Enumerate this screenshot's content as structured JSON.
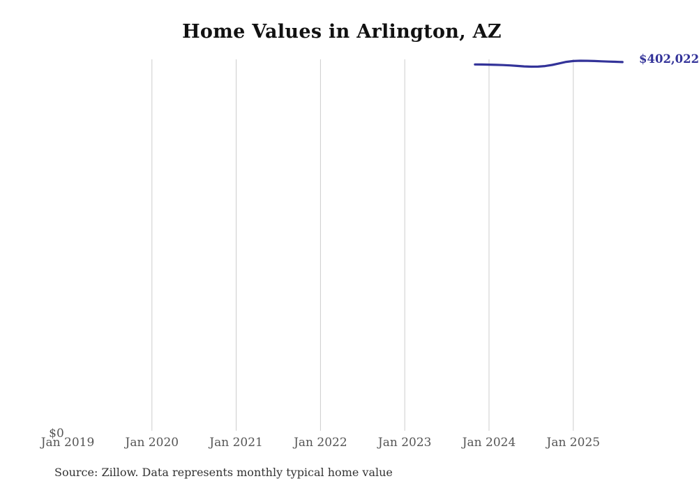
{
  "chart_data": {
    "type": "line",
    "title": "Home Values in Arlington, AZ",
    "xlabel": "",
    "ylabel": "",
    "x_tick_labels": [
      "Jan 2019",
      "Jan 2020",
      "Jan 2021",
      "Jan 2022",
      "Jan 2023",
      "Jan 2024",
      "Jan 2025"
    ],
    "y_zero_label": "$0",
    "end_label": "$402,022",
    "source": "Source: Zillow. Data represents monthly typical home value",
    "line_color": "#333399",
    "gridline_color": "#cccccc",
    "axis_label_color": "#555555",
    "ylim": [
      0,
      405000
    ],
    "x_range": [
      "Jan 2019",
      "Aug 2025"
    ],
    "grid": "vertical-only",
    "legend": "none",
    "x": [
      "2023-11",
      "2023-12",
      "2024-01",
      "2024-02",
      "2024-03",
      "2024-04",
      "2024-05",
      "2024-06",
      "2024-07",
      "2024-08",
      "2024-09",
      "2024-10",
      "2024-11",
      "2024-12",
      "2025-01",
      "2025-02",
      "2025-03",
      "2025-04",
      "2025-05",
      "2025-06",
      "2025-07",
      "2025-08"
    ],
    "series": [
      {
        "name": "Monthly typical home value",
        "values": [
          399434,
          399358,
          399206,
          398977,
          398749,
          398368,
          397835,
          397302,
          396997,
          397073,
          397682,
          398901,
          400576,
          402251,
          403165,
          403469,
          403393,
          403165,
          402860,
          402556,
          402327,
          402022
        ]
      }
    ]
  }
}
